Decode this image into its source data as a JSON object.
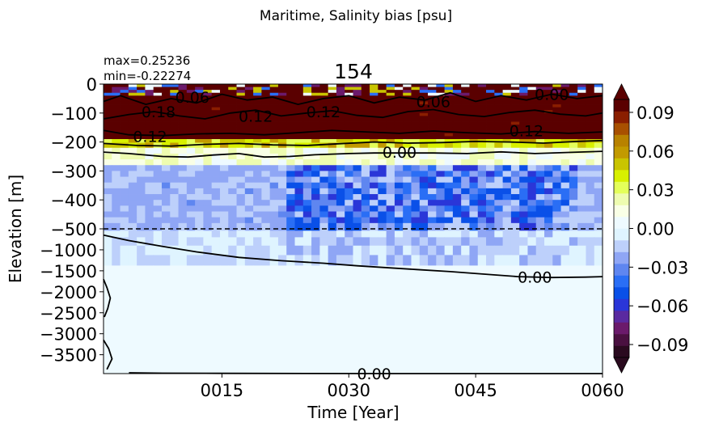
{
  "chart_data": {
    "type": "heatmap",
    "suptitle": "Maritime, Salinity bias [psu]",
    "title": "154",
    "stats": {
      "max_label": "max=0.25236",
      "min_label": "min=-0.22274"
    },
    "xlabel": "Time [Year]",
    "ylabel": "Elevation [m]",
    "x_range": [
      1,
      60
    ],
    "x_ticks": [
      {
        "value": 15,
        "label": "0015"
      },
      {
        "value": 30,
        "label": "0030"
      },
      {
        "value": 45,
        "label": "0045"
      },
      {
        "value": 60,
        "label": "0060"
      }
    ],
    "y_ticks_upper": [
      {
        "value": 0,
        "label": "0"
      },
      {
        "value": -100,
        "label": "−100"
      },
      {
        "value": -200,
        "label": "−200"
      },
      {
        "value": -300,
        "label": "−300"
      },
      {
        "value": -400,
        "label": "−400"
      },
      {
        "value": -500,
        "label": "−500"
      }
    ],
    "y_ticks_lower": [
      {
        "value": -1000,
        "label": "−1000"
      },
      {
        "value": -1500,
        "label": "−1500"
      },
      {
        "value": -2000,
        "label": "−2000"
      },
      {
        "value": -2500,
        "label": "−2500"
      },
      {
        "value": -3000,
        "label": "−3000"
      },
      {
        "value": -3500,
        "label": "−3500"
      }
    ],
    "axis_break_at": -500,
    "colorbar": {
      "range": [
        -0.1,
        0.1
      ],
      "extend": "both",
      "ticks": [
        {
          "value": 0.09,
          "label": "0.09"
        },
        {
          "value": 0.06,
          "label": "0.06"
        },
        {
          "value": 0.03,
          "label": "0.03"
        },
        {
          "value": 0.0,
          "label": "0.00"
        },
        {
          "value": -0.03,
          "label": "−0.03"
        },
        {
          "value": -0.06,
          "label": "−0.06"
        },
        {
          "value": -0.09,
          "label": "−0.09"
        }
      ],
      "colors": [
        "#2a0a1f",
        "#4a1040",
        "#6b1a6b",
        "#5a2aa0",
        "#2a36d8",
        "#0a50e8",
        "#2a6ef5",
        "#5f86f0",
        "#8fa6f5",
        "#bdd0fb",
        "#dff4ff",
        "#eefaff",
        "#f9ffe6",
        "#eefcb0",
        "#e4ff5a",
        "#d8f000",
        "#c9c400",
        "#c29a00",
        "#b88200",
        "#a85000",
        "#8a1e00",
        "#5a0000"
      ]
    },
    "depth_levels": [
      -5,
      -15,
      -25,
      -35,
      -45,
      -55,
      -65,
      -75,
      -85,
      -95,
      -105,
      -115,
      -125,
      -135,
      -145,
      -155,
      -165,
      -175,
      -185,
      -195,
      -210,
      -230,
      -250,
      -270,
      -290,
      -310,
      -330,
      -350,
      -370,
      -390,
      -410,
      -430,
      -450,
      -470,
      -490,
      -600,
      -800,
      -1000,
      -1250,
      -1500,
      -2000,
      -2500,
      -3000,
      -3500,
      -3900
    ],
    "layer_regimes": [
      {
        "depth_range": [
          0,
          -40
        ],
        "value_range": [
          -0.1,
          0.1
        ],
        "description": "mixed strong positive/negative"
      },
      {
        "depth_range": [
          -40,
          -190
        ],
        "value_range": [
          0.09,
          0.25
        ]
      },
      {
        "depth_range": [
          -190,
          -280
        ],
        "value_range": [
          0.0,
          0.06
        ]
      },
      {
        "depth_range": [
          -280,
          -520
        ],
        "value_range": [
          -0.06,
          -0.01
        ]
      },
      {
        "depth_range": [
          -520,
          -1500
        ],
        "value_range": [
          -0.03,
          0.0
        ]
      },
      {
        "depth_range": [
          -1500,
          -3950
        ],
        "value_range": [
          0.0,
          0.005
        ]
      }
    ],
    "contour_labels": [
      {
        "text": "0.18",
        "x": 7.5,
        "depth": -95
      },
      {
        "text": "0.12",
        "x": 6.5,
        "depth": -180
      },
      {
        "text": "0.12",
        "x": 19,
        "depth": -110
      },
      {
        "text": "0.12",
        "x": 27,
        "depth": -95
      },
      {
        "text": "0.12",
        "x": 51,
        "depth": -160
      },
      {
        "text": "0.06",
        "x": 11.5,
        "depth": -45
      },
      {
        "text": "0.06",
        "x": 40,
        "depth": -60
      },
      {
        "text": "0.00",
        "x": 54,
        "depth": -35
      },
      {
        "text": "0.00",
        "x": 36,
        "depth": -235
      },
      {
        "text": "0.00",
        "x": 52,
        "depth": -1650
      },
      {
        "text": "0.00",
        "x": 33,
        "depth": -3950
      }
    ]
  }
}
